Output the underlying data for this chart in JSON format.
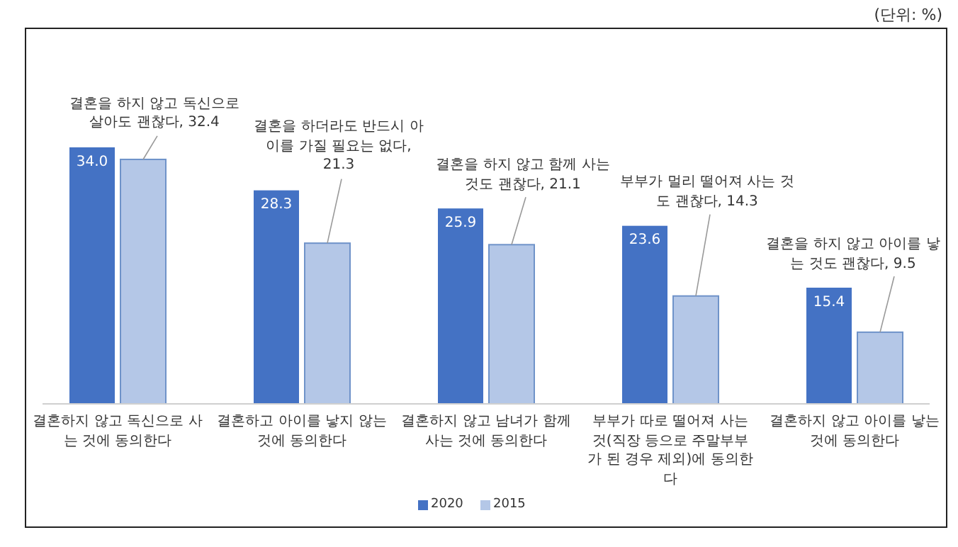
{
  "chart_data": {
    "type": "bar",
    "categories": [
      "결혼하지 않고 독신으로 사는 것에 동의한다",
      "결혼하고 아이를 낳지 않는 것에 동의한다",
      "결혼하지 않고 남녀가 함께 사는 것에 동의한다",
      "부부가 따로 떨어져 사는 것(직장 등으로 주말부부가 된 경우 제외)에 동의한다",
      "결혼하지 않고 아이를 낳는 것에 동의한다"
    ],
    "series": [
      {
        "name": "2020",
        "color": "#4472c4",
        "values": [
          34.0,
          28.3,
          25.9,
          23.6,
          15.4
        ],
        "value_labels": [
          "34.0",
          "28.3",
          "25.9",
          "23.6",
          "15.4"
        ]
      },
      {
        "name": "2015",
        "color": "#b4c7e7",
        "values": [
          32.4,
          21.3,
          21.1,
          14.3,
          9.5
        ],
        "value_labels": [
          "결혼을 하지 않고 독신으로 살아도 괜찮다, 32.4",
          "결혼을 하더라도 반드시 아이를 가질 필요는 없다, 21.3",
          "결혼을 하지 않고 함께 사는 것도 괜찮다, 21.1",
          "부부가 멀리 떨어져 사는 것도 괜찮다, 14.3",
          "결혼을 하지 않고 아이를 낳는 것도 괜찮다, 9.5"
        ]
      }
    ],
    "legend": "bottom",
    "annotations": [
      "(단위: %)"
    ]
  }
}
